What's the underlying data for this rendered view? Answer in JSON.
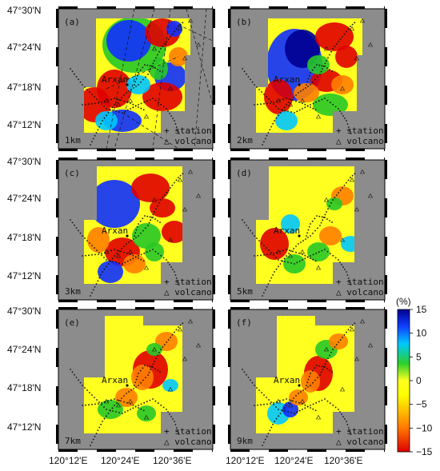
{
  "figure": {
    "lat_ticks": [
      "47°30'N",
      "47°24'N",
      "47°18'N",
      "47°12'N"
    ],
    "lon_ticks": [
      "120°12'E",
      "120°24'E",
      "120°36'E"
    ],
    "town_label": "Arxan",
    "legend_station": "+ station",
    "legend_volcano": "△ volcano",
    "panels": [
      {
        "id": "a",
        "tag": "(a)",
        "depth": "1km"
      },
      {
        "id": "b",
        "tag": "(b)",
        "depth": "2km"
      },
      {
        "id": "c",
        "tag": "(c)",
        "depth": "3km"
      },
      {
        "id": "d",
        "tag": "(d)",
        "depth": "5km"
      },
      {
        "id": "e",
        "tag": "(e)",
        "depth": "7km"
      },
      {
        "id": "f",
        "tag": "(f)",
        "depth": "9km"
      }
    ]
  },
  "colorbar": {
    "unit": "(%)",
    "ticks": [
      "15",
      "10",
      "5",
      "0",
      "−5",
      "−10",
      "−15"
    ],
    "min": -15,
    "max": 15,
    "colors": [
      "#dd0000",
      "#ff7a00",
      "#ffff00",
      "#2ccf2c",
      "#00c8ff",
      "#1040ff",
      "#000090"
    ]
  }
}
